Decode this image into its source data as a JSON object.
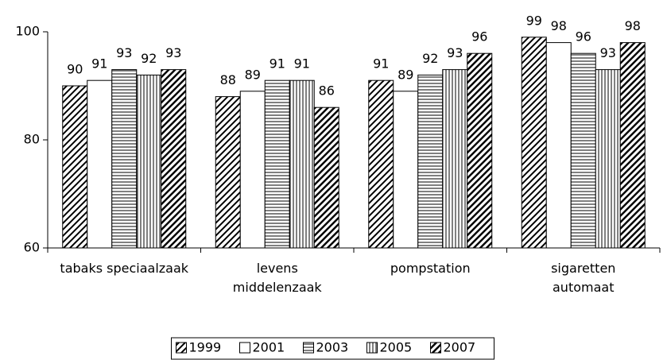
{
  "chart_data": {
    "type": "bar",
    "categories": [
      "tabaks speciaalzaak",
      "levens\nmiddelenzaak",
      "pompstation",
      "sigaretten\nautomaat"
    ],
    "series": [
      {
        "name": "1999",
        "color": "#000000",
        "pattern": "diagonal",
        "values": [
          90,
          88,
          91,
          99
        ]
      },
      {
        "name": "2001",
        "color": "#000000",
        "pattern": "solid-white",
        "values": [
          91,
          89,
          89,
          98
        ]
      },
      {
        "name": "2003",
        "color": "#000000",
        "pattern": "horizontal",
        "values": [
          93,
          91,
          92,
          96
        ]
      },
      {
        "name": "2005",
        "color": "#000000",
        "pattern": "vertical",
        "values": [
          92,
          91,
          93,
          93
        ]
      },
      {
        "name": "2007",
        "color": "#000000",
        "pattern": "dense-diagonal",
        "values": [
          93,
          86,
          96,
          98
        ]
      }
    ],
    "ylim": [
      60,
      100
    ],
    "yticks": [
      60,
      80,
      100
    ],
    "legend": "bottom"
  }
}
